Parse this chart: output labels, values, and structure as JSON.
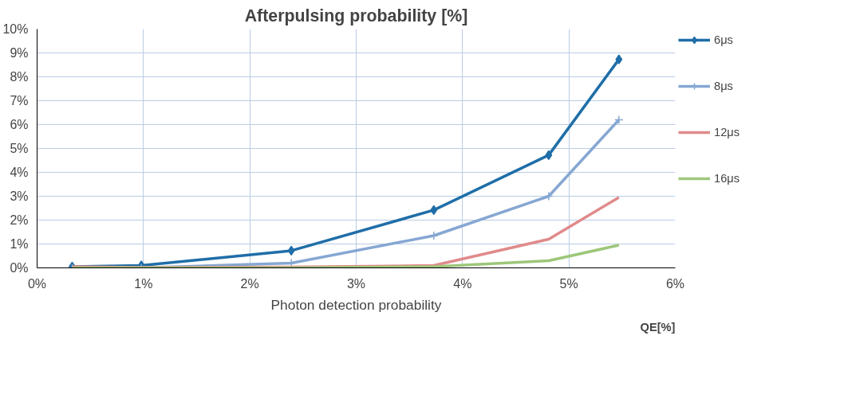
{
  "chart_data": {
    "type": "line",
    "title": "Afterpulsing probability [%]",
    "xlabel": "Photon detection probability",
    "annotations": [
      "QE[%]"
    ],
    "x": [
      0.33,
      0.98,
      2.39,
      3.73,
      4.81,
      5.47
    ],
    "series": [
      {
        "name": "6μs",
        "color": "#1f6ea8",
        "marker": "diamond",
        "values": [
          0.05,
          0.1,
          0.72,
          2.42,
          4.72,
          8.73
        ]
      },
      {
        "name": "8μs",
        "color": "#86a7d3",
        "marker": "cross",
        "values": [
          0.0,
          0.0,
          0.2,
          1.35,
          3.0,
          6.2
        ]
      },
      {
        "name": "12μs",
        "color": "#e08a8a",
        "marker": "none",
        "values": [
          0.05,
          0.02,
          0.03,
          0.1,
          1.2,
          2.95
        ]
      },
      {
        "name": "16μs",
        "color": "#9dc77a",
        "marker": "none",
        "values": [
          0.0,
          0.0,
          0.0,
          0.05,
          0.3,
          0.95
        ]
      }
    ],
    "xlim": [
      0,
      6
    ],
    "ylim": [
      0,
      10
    ],
    "xticks": [
      {
        "value": 0,
        "label": "0%"
      },
      {
        "value": 1,
        "label": "1%"
      },
      {
        "value": 2,
        "label": "2%"
      },
      {
        "value": 3,
        "label": "3%"
      },
      {
        "value": 4,
        "label": "4%"
      },
      {
        "value": 5,
        "label": "5%"
      },
      {
        "value": 6,
        "label": "6%"
      }
    ],
    "yticks": [
      {
        "value": 0,
        "label": "0%"
      },
      {
        "value": 1,
        "label": "1%"
      },
      {
        "value": 2,
        "label": "2%"
      },
      {
        "value": 3,
        "label": "3%"
      },
      {
        "value": 4,
        "label": "4%"
      },
      {
        "value": 5,
        "label": "5%"
      },
      {
        "value": 6,
        "label": "6%"
      },
      {
        "value": 7,
        "label": "7%"
      },
      {
        "value": 8,
        "label": "8%"
      },
      {
        "value": 9,
        "label": "9%"
      },
      {
        "value": 10,
        "label": "10%"
      }
    ],
    "grid": true,
    "legend": "right",
    "line_style": "solid"
  }
}
